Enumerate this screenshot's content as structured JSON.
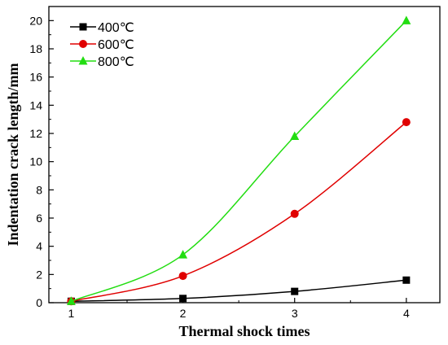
{
  "chart_data": {
    "type": "line",
    "title": "",
    "xlabel": "Thermal shock times",
    "ylabel": "Indentation crack length/mm",
    "x": [
      1,
      2,
      3,
      4
    ],
    "xlim": [
      0.8,
      4.3
    ],
    "ylim": [
      0,
      21
    ],
    "xticks": [
      1,
      2,
      3,
      4
    ],
    "yticks": [
      0,
      2,
      4,
      6,
      8,
      10,
      12,
      14,
      16,
      18,
      20
    ],
    "grid": false,
    "legend_position": "top-left",
    "series": [
      {
        "name": "400℃",
        "values": [
          0.1,
          0.3,
          0.8,
          1.6
        ],
        "color": "#000000",
        "marker": "square"
      },
      {
        "name": "600℃",
        "values": [
          0.1,
          1.9,
          6.3,
          12.8
        ],
        "color": "#e00000",
        "marker": "circle"
      },
      {
        "name": "800℃",
        "values": [
          0.1,
          3.4,
          11.8,
          20.0
        ],
        "color": "#22dd11",
        "marker": "triangle"
      }
    ]
  }
}
